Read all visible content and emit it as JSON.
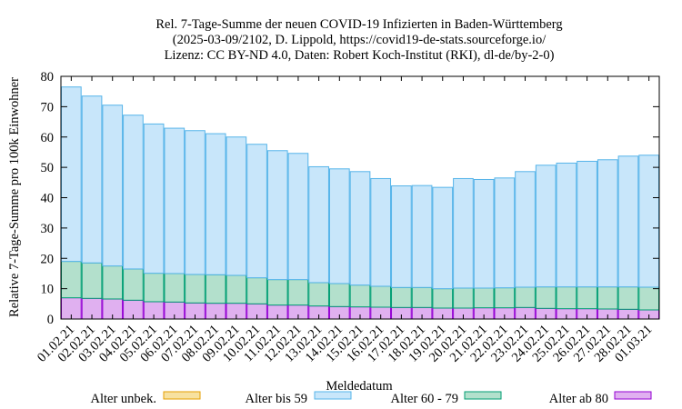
{
  "chart_data": {
    "type": "bar",
    "stacked": true,
    "title_lines": [
      "Rel. 7-Tage-Summe der neuen COVID-19 Infizierten in Baden-Württemberg",
      "(2025-03-09/2102, D. Lippold, https://covid19-de-stats.sourceforge.io/",
      "Lizenz: CC BY-ND 4.0, Daten: Robert Koch-Institut (RKI), dl-de/by-2-0)"
    ],
    "xlabel": "Meldedatum",
    "ylabel": "Relative 7-Tage-Summe pro 100k Einwohner",
    "ylim": [
      0,
      80
    ],
    "yticks": [
      0,
      10,
      20,
      30,
      40,
      50,
      60,
      70,
      80
    ],
    "grid": false,
    "legend_position": "bottom",
    "categories": [
      "01.02.21",
      "02.02.21",
      "03.02.21",
      "04.02.21",
      "05.02.21",
      "06.02.21",
      "07.02.21",
      "08.02.21",
      "09.02.21",
      "10.02.21",
      "11.02.21",
      "12.02.21",
      "13.02.21",
      "14.02.21",
      "15.02.21",
      "16.02.21",
      "17.02.21",
      "18.02.21",
      "19.02.21",
      "20.02.21",
      "21.02.21",
      "22.02.21",
      "23.02.21",
      "24.02.21",
      "25.02.21",
      "26.02.21",
      "27.02.21",
      "28.02.21",
      "01.03.21"
    ],
    "series": [
      {
        "name": "Alter ab 80",
        "fill": "#e0b0f0",
        "stroke": "#9400d3",
        "values": [
          7.0,
          6.8,
          6.6,
          6.2,
          5.7,
          5.6,
          5.3,
          5.2,
          5.2,
          5.0,
          4.6,
          4.6,
          4.3,
          4.1,
          4.0,
          3.9,
          3.8,
          3.8,
          3.6,
          3.6,
          3.7,
          3.7,
          3.8,
          3.5,
          3.4,
          3.4,
          3.3,
          3.2,
          3.0
        ]
      },
      {
        "name": "Alter 60 - 79",
        "fill": "#b3e0cc",
        "stroke": "#009e73",
        "values": [
          12.0,
          11.7,
          10.9,
          10.3,
          9.4,
          9.4,
          9.4,
          9.4,
          9.2,
          8.6,
          8.4,
          8.4,
          7.7,
          7.6,
          7.2,
          6.9,
          6.6,
          6.6,
          6.4,
          6.6,
          6.5,
          6.6,
          6.7,
          7.1,
          7.2,
          7.2,
          7.3,
          7.4,
          7.5
        ]
      },
      {
        "name": "Alter bis 59",
        "fill": "#c8e6fa",
        "stroke": "#56b4e9",
        "values": [
          57.5,
          55.0,
          53.0,
          50.7,
          49.2,
          47.9,
          47.4,
          46.5,
          45.6,
          44.0,
          42.5,
          41.6,
          38.2,
          37.8,
          37.4,
          35.5,
          33.5,
          33.6,
          33.4,
          36.1,
          35.8,
          36.2,
          38.1,
          40.1,
          40.8,
          41.4,
          41.9,
          43.1,
          43.5
        ]
      },
      {
        "name": "Alter unbek.",
        "fill": "#f7e1a0",
        "stroke": "#e69f00",
        "values": [
          0,
          0,
          0,
          0,
          0,
          0,
          0,
          0,
          0,
          0,
          0,
          0,
          0,
          0,
          0,
          0,
          0,
          0,
          0,
          0,
          0,
          0,
          0,
          0,
          0,
          0,
          0,
          0,
          0
        ]
      }
    ],
    "legend_order": [
      "Alter unbek.",
      "Alter bis 59",
      "Alter 60 - 79",
      "Alter ab 80"
    ]
  }
}
